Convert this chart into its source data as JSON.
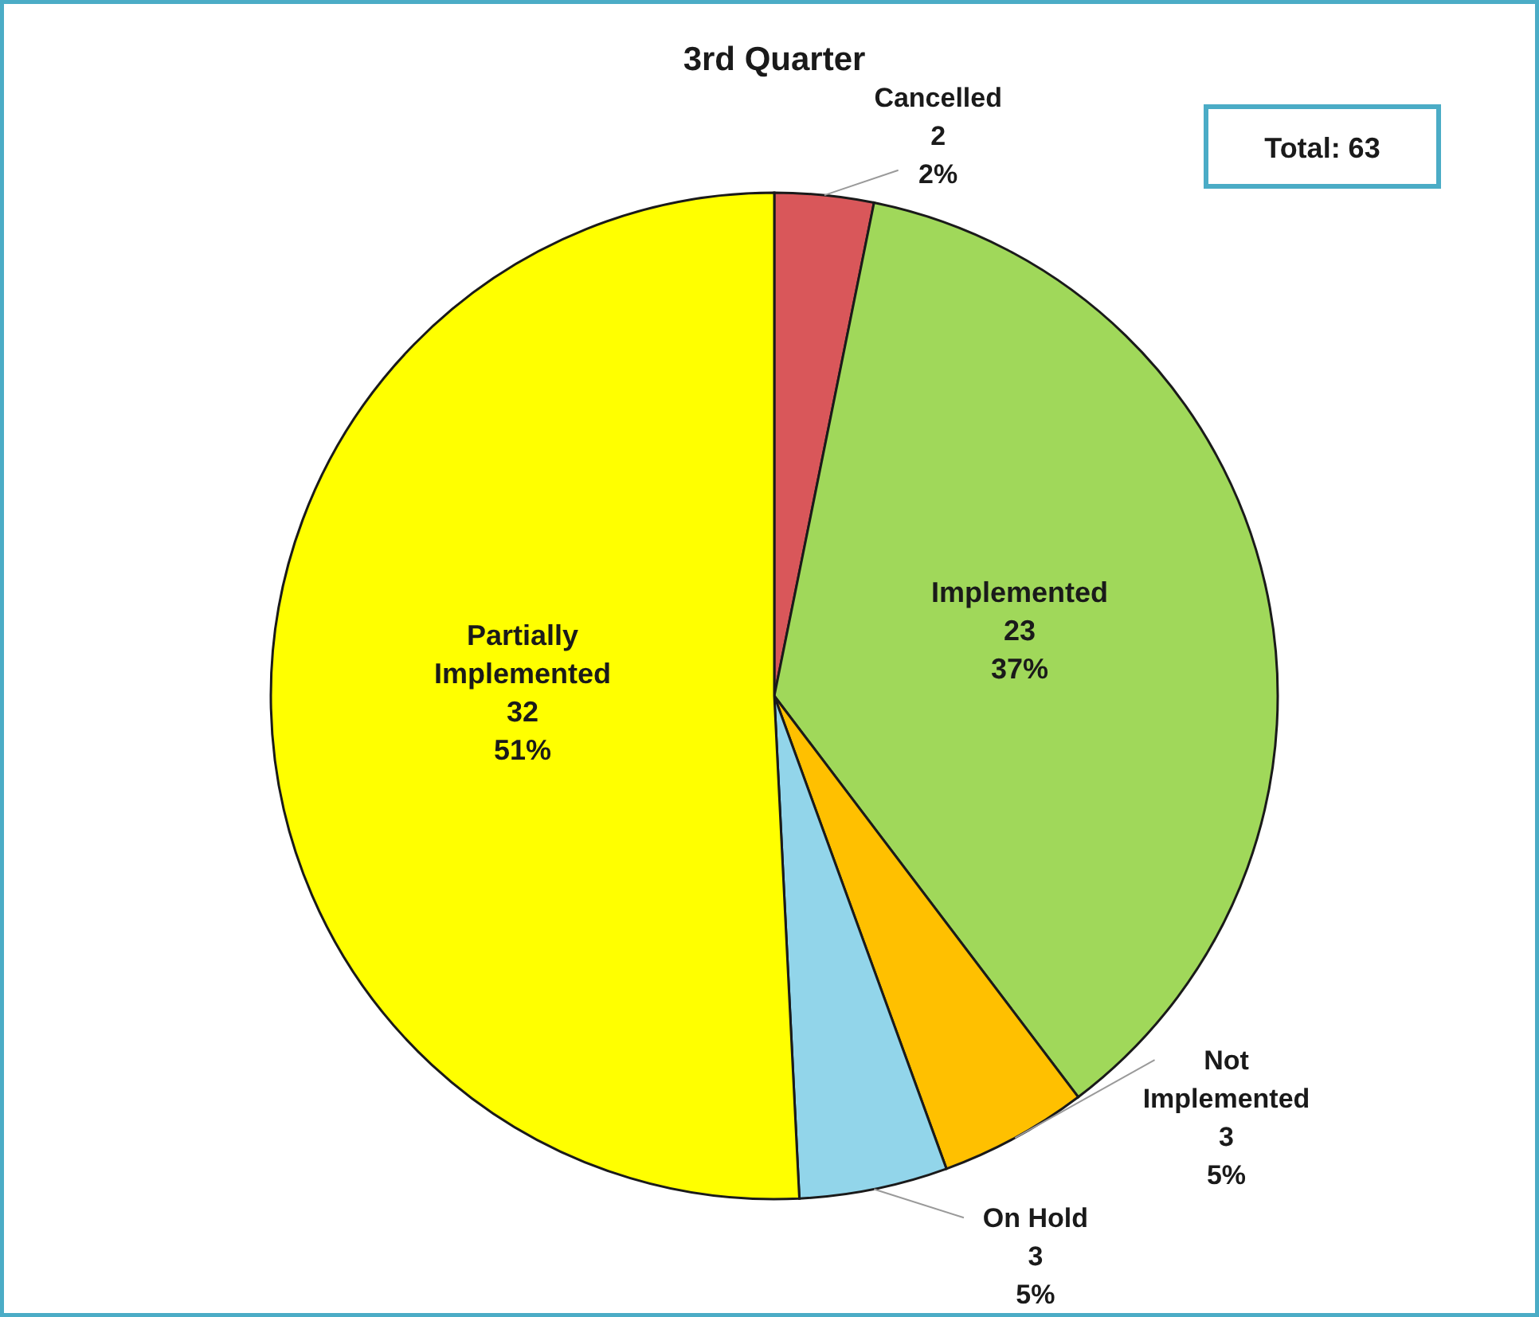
{
  "chart_data": {
    "type": "pie",
    "title": "3rd Quarter",
    "categories": [
      "Cancelled",
      "Implemented",
      "Not Implemented",
      "On Hold",
      "Partially Implemented"
    ],
    "values": [
      2,
      23,
      3,
      3,
      32
    ],
    "colors": [
      "#d9575a",
      "#a0d85a",
      "#ffc000",
      "#92d5ea",
      "#ffff00"
    ],
    "value_labels": [
      "2\n2%",
      "23\n37%",
      "3\n5%",
      "3\n5%",
      "32\n51%"
    ],
    "annotations": [
      "Total: 63"
    ]
  }
}
